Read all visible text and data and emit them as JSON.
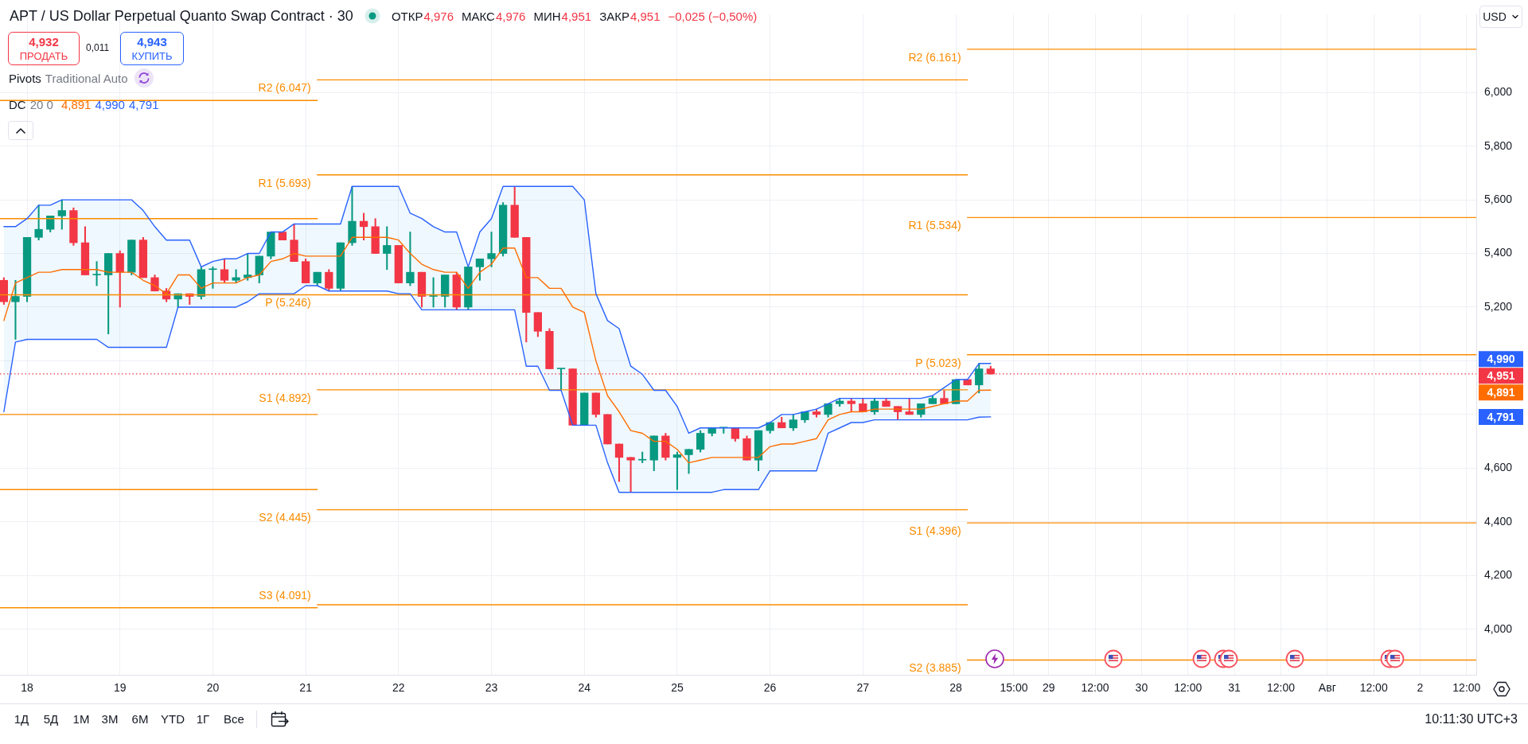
{
  "chart_data": {
    "type": "candlestick",
    "title": "APT / US Dollar Perpetual Quanto Swap Contract · 30",
    "x": [
      "--07-17T18:00",
      "--07-17T21:00",
      "--07-18T00:00",
      "--07-18T03:00",
      "--07-18T06:00",
      "--07-18T09:00",
      "--07-18T12:00",
      "--07-18T15:00",
      "--07-18T18:00",
      "--07-18T21:00",
      "--07-19T00:00",
      "--07-19T03:00",
      "--07-19T06:00",
      "--07-19T09:00",
      "--07-19T12:00",
      "--07-19T15:00",
      "--07-19T18:00",
      "--07-19T21:00",
      "--07-20T00:00",
      "--07-20T03:00",
      "--07-20T06:00",
      "--07-20T09:00",
      "--07-20T12:00",
      "--07-20T15:00",
      "--07-20T18:00",
      "--07-20T21:00",
      "--07-21T00:00",
      "--07-21T03:00",
      "--07-21T06:00",
      "--07-21T09:00",
      "--07-21T12:00",
      "--07-21T15:00",
      "--07-21T18:00",
      "--07-21T21:00",
      "--07-22T00:00",
      "--07-22T03:00",
      "--07-22T06:00",
      "--07-22T09:00",
      "--07-22T12:00",
      "--07-22T15:00",
      "--07-22T18:00",
      "--07-22T21:00",
      "--07-23T00:00",
      "--07-23T03:00",
      "--07-23T06:00",
      "--07-23T09:00",
      "--07-23T12:00",
      "--07-23T15:00",
      "--07-23T18:00",
      "--07-23T21:00",
      "--07-24T00:00",
      "--07-24T03:00",
      "--07-24T06:00",
      "--07-24T09:00",
      "--07-24T12:00",
      "--07-24T15:00",
      "--07-24T18:00",
      "--07-24T21:00",
      "--07-25T00:00",
      "--07-25T03:00",
      "--07-25T06:00",
      "--07-25T09:00",
      "--07-25T12:00",
      "--07-25T15:00",
      "--07-25T18:00",
      "--07-25T21:00",
      "--07-26T00:00",
      "--07-26T03:00",
      "--07-26T06:00",
      "--07-26T09:00",
      "--07-26T12:00",
      "--07-26T15:00",
      "--07-26T18:00",
      "--07-26T21:00",
      "--07-27T00:00",
      "--07-27T03:00",
      "--07-27T06:00",
      "--07-27T09:00",
      "--07-27T12:00",
      "--07-27T15:00",
      "--07-27T18:00",
      "--07-27T21:00",
      "--07-28T00:00",
      "--07-28T03:00",
      "--07-28T06:00",
      "--07-28T09:00"
    ],
    "ohlc": [
      [
        5.3,
        5.31,
        5.21,
        5.22
      ],
      [
        5.22,
        5.3,
        5.08,
        5.24
      ],
      [
        5.24,
        5.46,
        5.22,
        5.46
      ],
      [
        5.46,
        5.58,
        5.45,
        5.49
      ],
      [
        5.49,
        5.54,
        5.48,
        5.54
      ],
      [
        5.54,
        5.6,
        5.49,
        5.56
      ],
      [
        5.56,
        5.57,
        5.43,
        5.44
      ],
      [
        5.44,
        5.5,
        5.32,
        5.32
      ],
      [
        5.32,
        5.37,
        5.28,
        5.32
      ],
      [
        5.32,
        5.4,
        5.1,
        5.4
      ],
      [
        5.4,
        5.41,
        5.2,
        5.33
      ],
      [
        5.33,
        5.45,
        5.32,
        5.45
      ],
      [
        5.45,
        5.46,
        5.31,
        5.31
      ],
      [
        5.31,
        5.32,
        5.26,
        5.26
      ],
      [
        5.26,
        5.27,
        5.22,
        5.23
      ],
      [
        5.23,
        5.25,
        5.2,
        5.25
      ],
      [
        5.25,
        5.25,
        5.21,
        5.24
      ],
      [
        5.24,
        5.35,
        5.23,
        5.34
      ],
      [
        5.34,
        5.35,
        5.27,
        5.34
      ],
      [
        5.34,
        5.38,
        5.29,
        5.3
      ],
      [
        5.3,
        5.34,
        5.29,
        5.31
      ],
      [
        5.31,
        5.4,
        5.3,
        5.32
      ],
      [
        5.32,
        5.39,
        5.29,
        5.39
      ],
      [
        5.39,
        5.48,
        5.38,
        5.48
      ],
      [
        5.48,
        5.48,
        5.45,
        5.45
      ],
      [
        5.45,
        5.51,
        5.37,
        5.37
      ],
      [
        5.37,
        5.38,
        5.29,
        5.29
      ],
      [
        5.29,
        5.33,
        5.28,
        5.33
      ],
      [
        5.33,
        5.34,
        5.26,
        5.27
      ],
      [
        5.27,
        5.44,
        5.26,
        5.44
      ],
      [
        5.44,
        5.65,
        5.43,
        5.52
      ],
      [
        5.52,
        5.55,
        5.45,
        5.5
      ],
      [
        5.5,
        5.53,
        5.4,
        5.4
      ],
      [
        5.4,
        5.5,
        5.34,
        5.43
      ],
      [
        5.43,
        5.43,
        5.29,
        5.29
      ],
      [
        5.29,
        5.48,
        5.28,
        5.33
      ],
      [
        5.33,
        5.33,
        5.2,
        5.24
      ],
      [
        5.24,
        5.31,
        5.2,
        5.24
      ],
      [
        5.24,
        5.32,
        5.2,
        5.32
      ],
      [
        5.32,
        5.33,
        5.19,
        5.2
      ],
      [
        5.2,
        5.35,
        5.19,
        5.35
      ],
      [
        5.35,
        5.38,
        5.3,
        5.38
      ],
      [
        5.38,
        5.48,
        5.35,
        5.4
      ],
      [
        5.4,
        5.59,
        5.39,
        5.58
      ],
      [
        5.58,
        5.65,
        5.46,
        5.46
      ],
      [
        5.46,
        5.46,
        5.07,
        5.18
      ],
      [
        5.18,
        5.18,
        5.09,
        5.11
      ],
      [
        5.11,
        5.12,
        4.97,
        4.97
      ],
      [
        4.97,
        4.97,
        4.89,
        4.97
      ],
      [
        4.97,
        4.97,
        4.76,
        4.76
      ],
      [
        4.76,
        4.88,
        4.76,
        4.88
      ],
      [
        4.88,
        4.88,
        4.79,
        4.8
      ],
      [
        4.8,
        4.8,
        4.69,
        4.69
      ],
      [
        4.69,
        4.69,
        4.55,
        4.64
      ],
      [
        4.64,
        4.64,
        4.51,
        4.63
      ],
      [
        4.63,
        4.66,
        4.62,
        4.63
      ],
      [
        4.63,
        4.72,
        4.59,
        4.72
      ],
      [
        4.72,
        4.73,
        4.63,
        4.64
      ],
      [
        4.64,
        4.66,
        4.52,
        4.65
      ],
      [
        4.65,
        4.67,
        4.58,
        4.67
      ],
      [
        4.67,
        4.74,
        4.66,
        4.73
      ],
      [
        4.73,
        4.75,
        4.72,
        4.75
      ],
      [
        4.75,
        4.75,
        4.73,
        4.75
      ],
      [
        4.75,
        4.75,
        4.7,
        4.71
      ],
      [
        4.71,
        4.72,
        4.63,
        4.63
      ],
      [
        4.63,
        4.74,
        4.59,
        4.74
      ],
      [
        4.74,
        4.77,
        4.73,
        4.77
      ],
      [
        4.77,
        4.79,
        4.75,
        4.75
      ],
      [
        4.75,
        4.8,
        4.74,
        4.78
      ],
      [
        4.78,
        4.81,
        4.77,
        4.81
      ],
      [
        4.81,
        4.82,
        4.79,
        4.8
      ],
      [
        4.8,
        4.84,
        4.79,
        4.84
      ],
      [
        4.84,
        4.86,
        4.83,
        4.85
      ],
      [
        4.85,
        4.86,
        4.81,
        4.84
      ],
      [
        4.84,
        4.86,
        4.81,
        4.81
      ],
      [
        4.81,
        4.86,
        4.8,
        4.85
      ],
      [
        4.85,
        4.86,
        4.83,
        4.83
      ],
      [
        4.83,
        4.83,
        4.78,
        4.81
      ],
      [
        4.81,
        4.86,
        4.8,
        4.8
      ],
      [
        4.8,
        4.84,
        4.79,
        4.84
      ],
      [
        4.84,
        4.87,
        4.84,
        4.86
      ],
      [
        4.86,
        4.89,
        4.84,
        4.84
      ],
      [
        4.84,
        4.93,
        4.84,
        4.93
      ],
      [
        4.93,
        4.93,
        4.91,
        4.91
      ],
      [
        4.91,
        4.99,
        4.88,
        4.97
      ],
      [
        4.97,
        4.98,
        4.95,
        4.951
      ]
    ],
    "colors": [
      "#f23645",
      "#089981",
      "#089981",
      "#089981",
      "#089981",
      "#089981",
      "#f23645",
      "#f23645",
      "#089981",
      "#089981",
      "#f23645",
      "#089981",
      "#f23645",
      "#f23645",
      "#f23645",
      "#089981",
      "#f23645",
      "#089981",
      "#089981",
      "#f23645",
      "#089981",
      "#089981",
      "#089981",
      "#089981",
      "#f23645",
      "#f23645",
      "#f23645",
      "#089981",
      "#f23645",
      "#089981",
      "#089981",
      "#f23645",
      "#f23645",
      "#089981",
      "#f23645",
      "#089981",
      "#f23645",
      "#089981",
      "#089981",
      "#f23645",
      "#089981",
      "#089981",
      "#089981",
      "#089981",
      "#f23645",
      "#f23645",
      "#f23645",
      "#f23645",
      "#089981",
      "#f23645",
      "#089981",
      "#f23645",
      "#f23645",
      "#f23645",
      "#f23645",
      "#089981",
      "#089981",
      "#f23645",
      "#089981",
      "#089981",
      "#089981",
      "#089981",
      "#089981",
      "#f23645",
      "#f23645",
      "#089981",
      "#089981",
      "#f23645",
      "#089981",
      "#089981",
      "#f23645",
      "#089981",
      "#089981",
      "#f23645",
      "#f23645",
      "#089981",
      "#f23645",
      "#f23645",
      "#f23645",
      "#089981",
      "#089981",
      "#f23645",
      "#089981",
      "#f23645",
      "#089981",
      "#f23645"
    ],
    "series": [
      {
        "type": "line",
        "color": "#2962ff",
        "values": [
          5.5,
          5.5,
          5.53,
          5.58,
          5.58,
          5.6,
          5.6,
          5.6,
          5.6,
          5.6,
          5.6,
          5.6,
          5.56,
          5.5,
          5.45,
          5.45,
          5.45,
          5.35,
          5.37,
          5.38,
          5.38,
          5.4,
          5.4,
          5.48,
          5.48,
          5.51,
          5.51,
          5.51,
          5.51,
          5.51,
          5.65,
          5.65,
          5.65,
          5.65,
          5.65,
          5.55,
          5.53,
          5.5,
          5.48,
          5.48,
          5.35,
          5.48,
          5.53,
          5.65,
          5.65,
          5.65,
          5.65,
          5.65,
          5.65,
          5.65,
          5.6,
          5.25,
          5.15,
          5.12,
          4.98,
          4.95,
          4.89,
          4.89,
          4.83,
          4.73,
          4.75,
          4.75,
          4.75,
          4.75,
          4.75,
          4.75,
          4.77,
          4.8,
          4.8,
          4.81,
          4.82,
          4.84,
          4.86,
          4.86,
          4.86,
          4.86,
          4.86,
          4.86,
          4.86,
          4.86,
          4.87,
          4.9,
          4.93,
          4.93,
          4.99,
          4.99
        ]
      },
      {
        "type": "line",
        "color": "#ff6d00",
        "values": [
          5.15,
          5.29,
          5.31,
          5.33,
          5.33,
          5.34,
          5.34,
          5.34,
          5.34,
          5.33,
          5.33,
          5.33,
          5.3,
          5.28,
          5.25,
          5.32,
          5.32,
          5.27,
          5.29,
          5.29,
          5.29,
          5.31,
          5.32,
          5.37,
          5.38,
          5.4,
          5.39,
          5.39,
          5.39,
          5.39,
          5.46,
          5.46,
          5.46,
          5.46,
          5.45,
          5.4,
          5.36,
          5.34,
          5.33,
          5.33,
          5.27,
          5.33,
          5.36,
          5.42,
          5.42,
          5.31,
          5.31,
          5.27,
          5.27,
          5.2,
          5.18,
          5.0,
          4.87,
          4.81,
          4.74,
          4.73,
          4.7,
          4.7,
          4.67,
          4.62,
          4.63,
          4.64,
          4.64,
          4.64,
          4.64,
          4.64,
          4.68,
          4.69,
          4.69,
          4.7,
          4.71,
          4.78,
          4.8,
          4.81,
          4.81,
          4.82,
          4.82,
          4.82,
          4.82,
          4.82,
          4.83,
          4.84,
          4.85,
          4.85,
          4.89,
          4.891
        ],
        "lower": [
          4.81,
          5.07,
          5.08,
          5.08,
          5.08,
          5.08,
          5.08,
          5.08,
          5.08,
          5.05,
          5.05,
          5.05,
          5.05,
          5.05,
          5.05,
          5.2,
          5.2,
          5.2,
          5.2,
          5.2,
          5.2,
          5.22,
          5.25,
          5.25,
          5.25,
          5.25,
          5.28,
          5.28,
          5.26,
          5.26,
          5.26,
          5.26,
          5.26,
          5.26,
          5.25,
          5.25,
          5.19,
          5.19,
          5.19,
          5.19,
          5.19,
          5.19,
          5.19,
          5.19,
          5.19,
          4.98,
          4.98,
          4.89,
          4.89,
          4.76,
          4.76,
          4.76,
          4.62,
          4.51,
          4.51,
          4.51,
          4.51,
          4.51,
          4.51,
          4.51,
          4.51,
          4.51,
          4.52,
          4.52,
          4.52,
          4.52,
          4.59,
          4.59,
          4.59,
          4.59,
          4.59,
          4.73,
          4.75,
          4.77,
          4.77,
          4.78,
          4.78,
          4.78,
          4.78,
          4.78,
          4.78,
          4.78,
          4.78,
          4.78,
          4.79,
          4.791
        ],
        "upper": [
          5.5,
          5.5,
          5.53,
          5.58,
          5.58,
          5.6,
          5.6,
          5.6,
          5.6,
          5.6,
          5.6,
          5.6,
          5.56,
          5.5,
          5.45,
          5.45,
          5.45,
          5.35,
          5.37,
          5.38,
          5.38,
          5.4,
          5.4,
          5.48,
          5.48,
          5.51,
          5.51,
          5.51,
          5.51,
          5.51,
          5.65,
          5.65,
          5.65,
          5.65,
          5.65,
          5.55,
          5.53,
          5.5,
          5.48,
          5.48,
          5.35,
          5.48,
          5.53,
          5.65,
          5.65,
          5.65,
          5.65,
          5.65,
          5.65,
          5.65,
          5.6,
          5.25,
          5.15,
          5.12,
          4.98,
          4.95,
          4.89,
          4.89,
          4.83,
          4.73,
          4.75,
          4.75,
          4.75,
          4.75,
          4.75,
          4.75,
          4.77,
          4.8,
          4.8,
          4.81,
          4.82,
          4.84,
          4.86,
          4.86,
          4.86,
          4.86,
          4.86,
          4.86,
          4.86,
          4.86,
          4.87,
          4.9,
          4.93,
          4.93,
          4.99,
          4.99
        ]
      },
      {
        "type": "line",
        "color": "#2962ff",
        "values": [
          4.81,
          5.07,
          5.08,
          5.08,
          5.08,
          5.08,
          5.08,
          5.08,
          5.08,
          5.05,
          5.05,
          5.05,
          5.05,
          5.05,
          5.05,
          5.2,
          5.2,
          5.2,
          5.2,
          5.2,
          5.2,
          5.22,
          5.25,
          5.25,
          5.25,
          5.25,
          5.28,
          5.28,
          5.26,
          5.26,
          5.26,
          5.26,
          5.26,
          5.26,
          5.25,
          5.25,
          5.19,
          5.19,
          5.19,
          5.19,
          5.19,
          5.19,
          5.19,
          5.19,
          5.19,
          4.98,
          4.98,
          4.89,
          4.89,
          4.76,
          4.76,
          4.76,
          4.62,
          4.51,
          4.51,
          4.51,
          4.51,
          4.51,
          4.51,
          4.51,
          4.51,
          4.51,
          4.52,
          4.52,
          4.52,
          4.52,
          4.59,
          4.59,
          4.59,
          4.59,
          4.59,
          4.73,
          4.75,
          4.77,
          4.77,
          4.78,
          4.78,
          4.78,
          4.78,
          4.78,
          4.78,
          4.78,
          4.78,
          4.78,
          4.79,
          4.791
        ]
      },
      {
        "type": "line",
        "color": "#fb8c00",
        "x": [
          "--07-17T17:00",
          "--07-21T03:00"
        ],
        "values": [
          5.97,
          5.97
        ]
      },
      {
        "type": "line",
        "color": "#fb8c00",
        "x": [
          "--07-17T17:00",
          "--07-21T03:00"
        ],
        "values": [
          5.53,
          5.53
        ]
      },
      {
        "type": "line",
        "color": "#fb8c00",
        "x": [
          "--07-17T17:00",
          "--07-21T03:00",
          "--07-28T03:00"
        ],
        "values": [
          5.246,
          5.246,
          5.246
        ]
      },
      {
        "type": "line",
        "color": "#fb8c00",
        "x": [
          "--07-17T17:00",
          "--07-21T03:00"
        ],
        "values": [
          4.8,
          4.8
        ]
      },
      {
        "type": "line",
        "color": "#fb8c00",
        "x": [
          "--07-17T17:00",
          "--07-21T03:00"
        ],
        "values": [
          4.52,
          4.52
        ]
      },
      {
        "type": "line",
        "color": "#fb8c00",
        "x": [
          "--07-17T17:00",
          "--07-21T03:00"
        ],
        "values": [
          4.08,
          4.08
        ]
      },
      {
        "type": "line",
        "name": "R2 (6.047)",
        "color": "#fb8c00",
        "x": [
          "--07-21T03:00",
          "--07-28T03:00"
        ],
        "values": [
          6.047,
          6.047
        ]
      },
      {
        "type": "line",
        "name": "R1 (5.693)",
        "color": "#fb8c00",
        "x": [
          "--07-21T03:00",
          "--07-28T03:00"
        ],
        "values": [
          5.693,
          5.693
        ]
      },
      {
        "type": "line",
        "name": "S1 (4.892)",
        "color": "#fb8c00",
        "x": [
          "--07-21T03:00",
          "--07-28T03:00"
        ],
        "values": [
          4.892,
          4.892
        ]
      },
      {
        "type": "line",
        "name": "S2 (4.445)",
        "color": "#fb8c00",
        "x": [
          "--07-21T03:00",
          "--07-28T03:00"
        ],
        "values": [
          4.445,
          4.445
        ]
      },
      {
        "type": "line",
        "name": "S3 (4.091)",
        "color": "#fb8c00",
        "x": [
          "--07-21T03:00",
          "--07-28T03:00"
        ],
        "values": [
          4.091,
          4.091
        ]
      },
      {
        "type": "line",
        "name": "R2 (6.161)",
        "color": "#fb8c00",
        "x": [
          "--07-28T03:00",
          "--08-02T14:30"
        ],
        "values": [
          6.161,
          6.161
        ]
      },
      {
        "type": "line",
        "name": "R1 (5.534)",
        "color": "#fb8c00",
        "x": [
          "--07-28T03:00",
          "--08-02T14:30"
        ],
        "values": [
          5.534,
          5.534
        ]
      },
      {
        "type": "line",
        "name": "P (5.023)",
        "color": "#fb8c00",
        "x": [
          "--07-28T03:00",
          "--08-02T14:30"
        ],
        "values": [
          5.023,
          5.023
        ]
      },
      {
        "type": "line",
        "name": "S1 (4.396)",
        "color": "#fb8c00",
        "x": [
          "--07-28T03:00",
          "--08-02T14:30"
        ],
        "values": [
          4.396,
          4.396
        ]
      },
      {
        "type": "line",
        "name": "S2 (3.885)",
        "color": "#fb8c00",
        "x": [
          "--07-28T03:00",
          "--08-02T14:30"
        ],
        "values": [
          3.885,
          3.885
        ]
      }
    ],
    "xlim": [
      "--07-17T17:00",
      "--08-02T14:30"
    ],
    "xticks": [
      {
        "value": "--07-18",
        "label": "18"
      },
      {
        "value": "--07-19",
        "label": "19"
      },
      {
        "value": "--07-20",
        "label": "20"
      },
      {
        "value": "--07-21",
        "label": "21"
      },
      {
        "value": "--07-22",
        "label": "22"
      },
      {
        "value": "--07-23",
        "label": "23"
      },
      {
        "value": "--07-24",
        "label": "24"
      },
      {
        "value": "--07-25",
        "label": "25"
      },
      {
        "value": "--07-26",
        "label": "26"
      },
      {
        "value": "--07-27",
        "label": "27"
      },
      {
        "value": "--07-28",
        "label": "28"
      },
      {
        "value": "--07-28T15:00",
        "label": "15:00"
      },
      {
        "value": "--07-29",
        "label": "29"
      },
      {
        "value": "--07-29T12:00",
        "label": "12:00"
      },
      {
        "value": "--07-30",
        "label": "30"
      },
      {
        "value": "--07-30T12:00",
        "label": "12:00"
      },
      {
        "value": "--07-31",
        "label": "31"
      },
      {
        "value": "--07-31T12:00",
        "label": "12:00"
      },
      {
        "value": "--08-01",
        "label": "Авг"
      },
      {
        "value": "--08-01T12:00",
        "label": "12:00"
      },
      {
        "value": "--08-02",
        "label": "2"
      },
      {
        "value": "--08-02T12:00",
        "label": "12:00"
      }
    ],
    "ylim": [
      3.83,
      6.29
    ],
    "yticks": [
      {
        "value": 4,
        "label": "4,000"
      },
      {
        "value": 4.2,
        "label": "4,200"
      },
      {
        "value": 4.4,
        "label": "4,400"
      },
      {
        "value": 4.6,
        "label": "4,600"
      },
      {
        "value": 4.8,
        "label": null
      },
      {
        "value": 5,
        "label": null
      },
      {
        "value": 5.2,
        "label": "5,200"
      },
      {
        "value": 5.4,
        "label": "5,400"
      },
      {
        "value": 5.6,
        "label": "5,600"
      },
      {
        "value": 5.8,
        "label": "5,800"
      },
      {
        "value": 6,
        "label": "6,000"
      }
    ],
    "grid": true,
    "ref_lines": [
      {
        "axis": "y",
        "value": 4.951,
        "label": "4,951",
        "color": "#f23645",
        "line_style": "dotted"
      }
    ],
    "annotations": [
      "ОТКР",
      "4,976",
      "МАКС",
      "4,976",
      "МИН",
      "4,951",
      "ЗАКР",
      "4,951",
      "−0,025 (−0,50%)",
      "4,932",
      "ПРОДАТЬ",
      "0,011",
      "4,943",
      "КУПИТЬ",
      "Pivots",
      "Traditional Auto",
      "DC",
      "20 0",
      "4,891",
      "4,990",
      "4,791",
      "USD",
      "1Д",
      "5Д",
      "1М",
      "3М",
      "6М",
      "YTD",
      "1Г",
      "Все",
      "10:11:30 UTC+3",
      "4,990",
      "4,891",
      "4,791",
      {
        "text": "P (5.246)",
        "x": "--07-21T03:00",
        "y": 5.246
      }
    ]
  }
}
